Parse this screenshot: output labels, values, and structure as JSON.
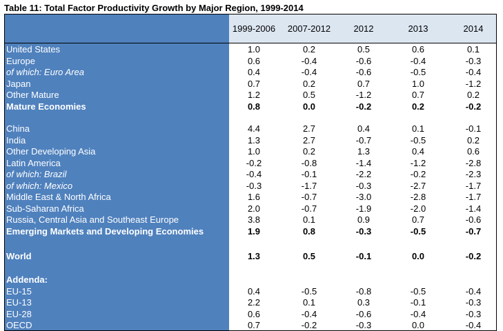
{
  "title": "Table 11: Total Factor Productivity Growth by Major Region, 1999-2014",
  "columns": [
    "1999-2006",
    "2007-2012",
    "2012",
    "2013",
    "2014"
  ],
  "rows": [
    {
      "label": "United States",
      "values": [
        "1.0",
        "0.2",
        "0.5",
        "0.6",
        "0.1"
      ],
      "style": ""
    },
    {
      "label": "Europe",
      "values": [
        "0.6",
        "-0.4",
        "-0.6",
        "-0.4",
        "-0.3"
      ],
      "style": ""
    },
    {
      "label": "of which: Euro Area",
      "values": [
        "0.4",
        "-0.4",
        "-0.6",
        "-0.5",
        "-0.4"
      ],
      "style": "it"
    },
    {
      "label": "Japan",
      "values": [
        "0.7",
        "0.2",
        "0.7",
        "1.0",
        "-1.2"
      ],
      "style": ""
    },
    {
      "label": "Other Mature",
      "values": [
        "1.2",
        "0.5",
        "-1.2",
        "0.7",
        "0.2"
      ],
      "style": ""
    },
    {
      "label": "Mature Economies",
      "values": [
        "0.8",
        "0.0",
        "-0.2",
        "0.2",
        "-0.2"
      ],
      "style": "b"
    },
    {
      "label": "China",
      "values": [
        "4.4",
        "2.7",
        "0.4",
        "0.1",
        "-0.1"
      ],
      "style": ""
    },
    {
      "label": "India",
      "values": [
        "1.3",
        "2.7",
        "-0.7",
        "-0.5",
        "0.2"
      ],
      "style": ""
    },
    {
      "label": "Other Developing Asia",
      "values": [
        "1.0",
        "0.2",
        "1.3",
        "0.4",
        "0.6"
      ],
      "style": ""
    },
    {
      "label": "Latin America",
      "values": [
        "-0.2",
        "-0.8",
        "-1.4",
        "-1.2",
        "-2.8"
      ],
      "style": ""
    },
    {
      "label": "of which: Brazil",
      "values": [
        "-0.4",
        "-0.1",
        "-2.2",
        "-0.2",
        "-2.3"
      ],
      "style": "it"
    },
    {
      "label": "of which: Mexico",
      "values": [
        "-0.3",
        "-1.7",
        "-0.3",
        "-2.7",
        "-1.7"
      ],
      "style": "it"
    },
    {
      "label": "Middle East & North Africa",
      "values": [
        "1.6",
        "-0.7",
        "-3.0",
        "-2.8",
        "-1.7"
      ],
      "style": ""
    },
    {
      "label": "Sub-Saharan Africa",
      "values": [
        "2.0",
        "-0.7",
        "-1.9",
        "-2.0",
        "-1.4"
      ],
      "style": ""
    },
    {
      "label": "Russia, Central Asia and Southeast Europe",
      "values": [
        "3.8",
        "0.1",
        "0.9",
        "0.7",
        "-0.6"
      ],
      "style": ""
    },
    {
      "label": "Emerging Markets and Developing Economies",
      "values": [
        "1.9",
        "0.8",
        "-0.3",
        "-0.5",
        "-0.7"
      ],
      "style": "b"
    },
    {
      "label": "World",
      "values": [
        "1.3",
        "0.5",
        "-0.1",
        "0.0",
        "-0.2"
      ],
      "style": "b"
    },
    {
      "label": "Addenda:",
      "values": [
        "",
        "",
        "",
        "",
        ""
      ],
      "style": "b"
    },
    {
      "label": "EU-15",
      "values": [
        "0.4",
        "-0.5",
        "-0.8",
        "-0.5",
        "-0.4"
      ],
      "style": ""
    },
    {
      "label": "EU-13",
      "values": [
        "2.2",
        "0.1",
        "0.3",
        "-0.1",
        "-0.3"
      ],
      "style": ""
    },
    {
      "label": "EU-28",
      "values": [
        "0.6",
        "-0.4",
        "-0.6",
        "-0.4",
        "-0.3"
      ],
      "style": ""
    },
    {
      "label": "OECD",
      "values": [
        "0.7",
        "-0.2",
        "-0.3",
        "0.0",
        "-0.4"
      ],
      "style": ""
    }
  ]
}
